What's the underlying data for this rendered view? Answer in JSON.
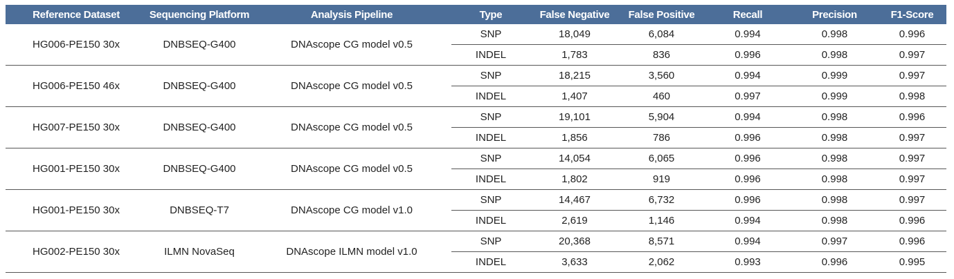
{
  "headers": [
    "Reference Dataset",
    "Sequencing Platform",
    "Analysis Pipeline",
    "Type",
    "False Negative",
    "False Positive",
    "Recall",
    "Precision",
    "F1-Score"
  ],
  "groups": [
    {
      "dataset": "HG006-PE150 30x",
      "platform": "DNBSEQ-G400",
      "pipeline": "DNAscope CG model v0.5",
      "rows": [
        {
          "type": "SNP",
          "fn": "18,049",
          "fp": "6,084",
          "recall": "0.994",
          "precision": "0.998",
          "f1": "0.996"
        },
        {
          "type": "INDEL",
          "fn": "1,783",
          "fp": "836",
          "recall": "0.996",
          "precision": "0.998",
          "f1": "0.997"
        }
      ]
    },
    {
      "dataset": "HG006-PE150 46x",
      "platform": "DNBSEQ-G400",
      "pipeline": "DNAscope CG model v0.5",
      "rows": [
        {
          "type": "SNP",
          "fn": "18,215",
          "fp": "3,560",
          "recall": "0.994",
          "precision": "0.999",
          "f1": "0.997"
        },
        {
          "type": "INDEL",
          "fn": "1,407",
          "fp": "460",
          "recall": "0.997",
          "precision": "0.999",
          "f1": "0.998"
        }
      ]
    },
    {
      "dataset": "HG007-PE150 30x",
      "platform": "DNBSEQ-G400",
      "pipeline": "DNAscope CG model v0.5",
      "rows": [
        {
          "type": "SNP",
          "fn": "19,101",
          "fp": "5,904",
          "recall": "0.994",
          "precision": "0.998",
          "f1": "0.996"
        },
        {
          "type": "INDEL",
          "fn": "1,856",
          "fp": "786",
          "recall": "0.996",
          "precision": "0.998",
          "f1": "0.997"
        }
      ]
    },
    {
      "dataset": "HG001-PE150 30x",
      "platform": "DNBSEQ-G400",
      "pipeline": "DNAscope CG model v0.5",
      "rows": [
        {
          "type": "SNP",
          "fn": "14,054",
          "fp": "6,065",
          "recall": "0.996",
          "precision": "0.998",
          "f1": "0.997"
        },
        {
          "type": "INDEL",
          "fn": "1,802",
          "fp": "919",
          "recall": "0.996",
          "precision": "0.998",
          "f1": "0.997"
        }
      ]
    },
    {
      "dataset": "HG001-PE150 30x",
      "platform": "DNBSEQ-T7",
      "pipeline": "DNAscope CG model v1.0",
      "rows": [
        {
          "type": "SNP",
          "fn": "14,467",
          "fp": "6,732",
          "recall": "0.996",
          "precision": "0.998",
          "f1": "0.997"
        },
        {
          "type": "INDEL",
          "fn": "2,619",
          "fp": "1,146",
          "recall": "0.994",
          "precision": "0.998",
          "f1": "0.996"
        }
      ]
    },
    {
      "dataset": "HG002-PE150 30x",
      "platform": "ILMN NovaSeq",
      "pipeline": "DNAscope ILMN model v1.0",
      "rows": [
        {
          "type": "SNP",
          "fn": "20,368",
          "fp": "8,571",
          "recall": "0.994",
          "precision": "0.997",
          "f1": "0.996"
        },
        {
          "type": "INDEL",
          "fn": "3,633",
          "fp": "2,062",
          "recall": "0.993",
          "precision": "0.996",
          "f1": "0.995"
        }
      ]
    }
  ]
}
